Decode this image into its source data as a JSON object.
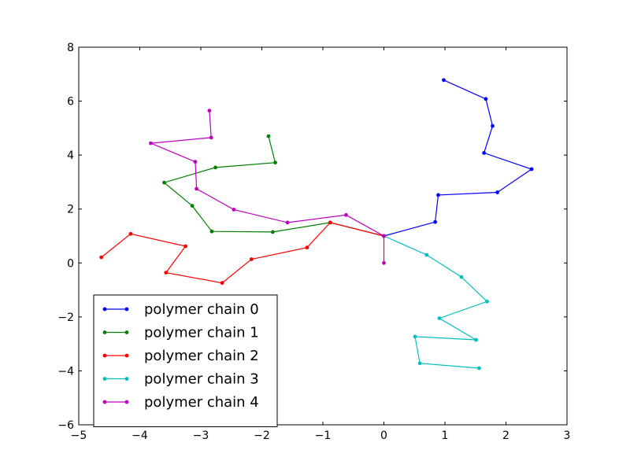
{
  "chart_data": {
    "type": "line",
    "title": "",
    "xlabel": "",
    "ylabel": "",
    "xlim": [
      -5,
      3
    ],
    "ylim": [
      -6,
      8
    ],
    "xticks": [
      -5,
      -4,
      -3,
      -2,
      -1,
      0,
      1,
      2,
      3
    ],
    "yticks": [
      -6,
      -4,
      -2,
      0,
      2,
      4,
      6,
      8
    ],
    "xtick_labels": [
      "−5",
      "−4",
      "−3",
      "−2",
      "−1",
      "0",
      "1",
      "2",
      "3"
    ],
    "ytick_labels": [
      "−6",
      "−4",
      "−2",
      "0",
      "2",
      "4",
      "6",
      "8"
    ],
    "grid": false,
    "legend_position": "lower-left",
    "series": [
      {
        "name": "polymer chain 0",
        "color": "#0000ff",
        "x": [
          0.0,
          0.84,
          0.89,
          1.86,
          2.42,
          1.64,
          1.78,
          1.67,
          0.98
        ],
        "y": [
          1.0,
          1.52,
          2.52,
          2.62,
          3.48,
          4.08,
          5.08,
          6.08,
          6.78
        ]
      },
      {
        "name": "polymer chain 1",
        "color": "#008000",
        "x": [
          0.0,
          -0.88,
          -1.82,
          -2.82,
          -3.14,
          -3.6,
          -2.76,
          -1.78,
          -1.89
        ],
        "y": [
          1.0,
          1.5,
          1.15,
          1.17,
          2.12,
          2.98,
          3.54,
          3.72,
          4.7
        ]
      },
      {
        "name": "polymer chain 2",
        "color": "#ff0000",
        "x": [
          0.0,
          -0.88,
          -1.26,
          -2.17,
          -2.65,
          -3.57,
          -3.25,
          -4.15,
          -4.63
        ],
        "y": [
          1.0,
          1.5,
          0.57,
          0.14,
          -0.74,
          -0.36,
          0.62,
          1.08,
          0.21
        ]
      },
      {
        "name": "polymer chain 3",
        "color": "#00bfbf",
        "x": [
          0.0,
          0.7,
          1.27,
          1.69,
          0.91,
          1.51,
          0.51,
          0.59,
          1.56
        ],
        "y": [
          1.0,
          0.3,
          -0.52,
          -1.43,
          -2.05,
          -2.85,
          -2.73,
          -3.72,
          -3.9
        ]
      },
      {
        "name": "polymer chain 4",
        "color": "#bf00bf",
        "x": [
          0.0,
          0.0,
          -0.62,
          -1.58,
          -2.46,
          -3.07,
          -3.09,
          -3.82,
          -2.83,
          -2.86
        ],
        "y": [
          0.0,
          1.0,
          1.78,
          1.5,
          1.98,
          2.75,
          3.75,
          4.44,
          4.65,
          5.65
        ]
      }
    ]
  }
}
